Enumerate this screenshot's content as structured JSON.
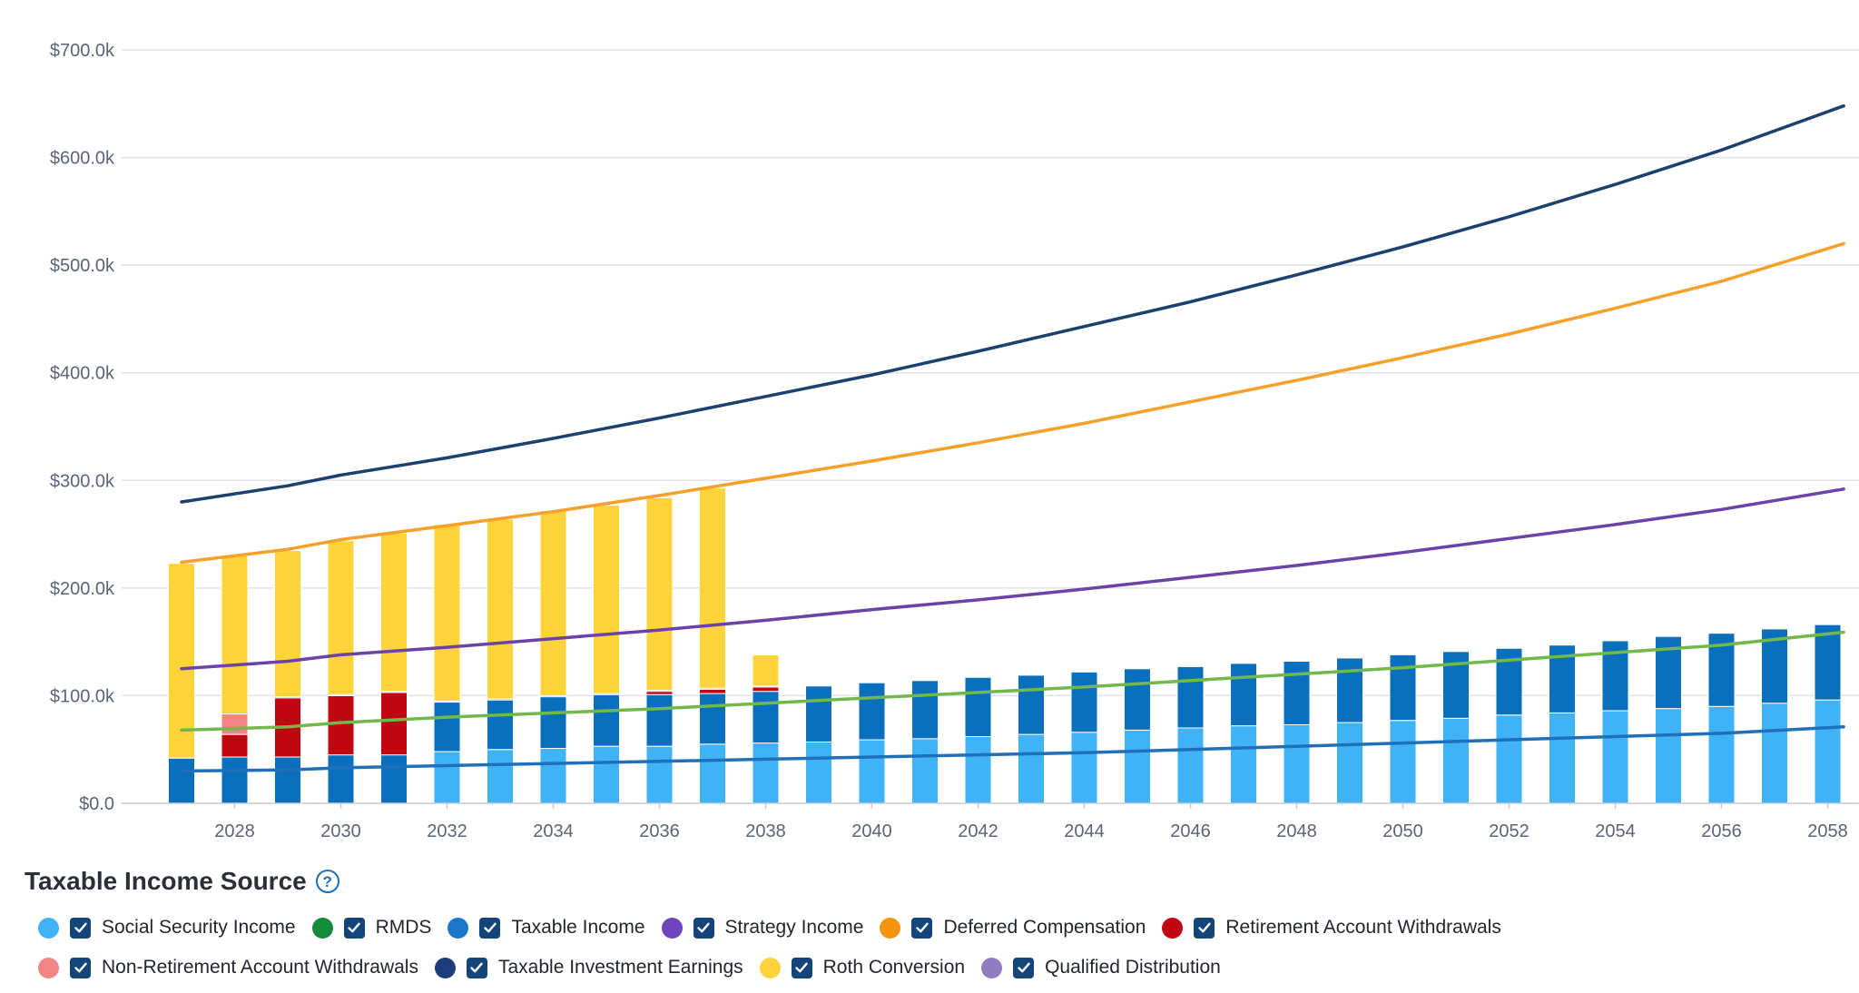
{
  "legend": {
    "title": "Taxable Income Source",
    "help_icon": "?",
    "items": [
      {
        "label": "Social Security Income",
        "color": "#3fb3f5"
      },
      {
        "label": "RMDS",
        "color": "#168a3c"
      },
      {
        "label": "Taxable Income",
        "color": "#1a77c9"
      },
      {
        "label": "Strategy Income",
        "color": "#6e45bd"
      },
      {
        "label": "Deferred Compensation",
        "color": "#f5950f"
      },
      {
        "label": "Retirement Account Withdrawals",
        "color": "#c00610"
      },
      {
        "label": "Non-Retirement Account Withdrawals",
        "color": "#f08586"
      },
      {
        "label": "Taxable Investment Earnings",
        "color": "#1c3c7b"
      },
      {
        "label": "Roth Conversion",
        "color": "#fed43a"
      },
      {
        "label": "Qualified Distribution",
        "color": "#8f7dbf"
      }
    ]
  },
  "chart_data": {
    "type": "bar",
    "stacked": true,
    "ylim": [
      0,
      700000
    ],
    "y_ticks": [
      0,
      100000,
      200000,
      300000,
      400000,
      500000,
      600000,
      700000
    ],
    "y_tick_labels": [
      "$0.0",
      "$100.0k",
      "$200.0k",
      "$300.0k",
      "$400.0k",
      "$500.0k",
      "$600.0k",
      "$700.0k"
    ],
    "x_tick_labels": [
      "2028",
      "2030",
      "2032",
      "2034",
      "2036",
      "2038",
      "2040",
      "2042",
      "2044",
      "2046",
      "2048",
      "2050",
      "2052",
      "2054",
      "2056",
      "2058"
    ],
    "categories": [
      2027,
      2028,
      2029,
      2030,
      2031,
      2032,
      2033,
      2034,
      2035,
      2036,
      2037,
      2038,
      2039,
      2040,
      2041,
      2042,
      2043,
      2044,
      2045,
      2046,
      2047,
      2048,
      2049,
      2050,
      2051,
      2052,
      2053,
      2054,
      2055,
      2056,
      2057,
      2058
    ],
    "grid": true,
    "legend_position": "bottom",
    "series": [
      {
        "name": "Social Security Income",
        "color": "#3fb3f5",
        "values": [
          0,
          0,
          0,
          0,
          0,
          48000,
          50000,
          51000,
          53000,
          53000,
          55000,
          56000,
          57000,
          59000,
          60000,
          62000,
          64000,
          66000,
          68000,
          70000,
          72000,
          73000,
          75000,
          77000,
          79000,
          82000,
          84000,
          86000,
          88000,
          90000,
          93000,
          96000
        ]
      },
      {
        "name": "Taxable Income",
        "color": "#0a6fbd",
        "values": [
          42000,
          43000,
          43000,
          45000,
          45000,
          46000,
          46000,
          48000,
          48000,
          48000,
          47000,
          48000,
          52000,
          53000,
          54000,
          55000,
          55000,
          56000,
          57000,
          57000,
          58000,
          59000,
          60000,
          61000,
          62000,
          62000,
          63000,
          65000,
          67000,
          68000,
          69000,
          70000
        ]
      },
      {
        "name": "Retirement Account Withdrawals",
        "color": "#c00610",
        "values": [
          0,
          21000,
          55000,
          55000,
          58000,
          0,
          0,
          0,
          0,
          3000,
          4000,
          4000,
          0,
          0,
          0,
          0,
          0,
          0,
          0,
          0,
          0,
          0,
          0,
          0,
          0,
          0,
          0,
          0,
          0,
          0,
          0,
          0
        ]
      },
      {
        "name": "Non-Retirement Account Withdrawals",
        "color": "#f08586",
        "values": [
          0,
          19000,
          0,
          0,
          0,
          0,
          0,
          0,
          0,
          0,
          0,
          0,
          0,
          0,
          0,
          0,
          0,
          0,
          0,
          0,
          0,
          0,
          0,
          0,
          0,
          0,
          0,
          0,
          0,
          0,
          0,
          0
        ]
      },
      {
        "name": "Taxable Investment Earnings",
        "color": "#1c3c7b",
        "values": [
          0,
          0,
          1000,
          1000,
          1000,
          1000,
          1000,
          1000,
          1000,
          1000,
          1000,
          1000,
          0,
          0,
          0,
          0,
          0,
          0,
          0,
          0,
          0,
          0,
          0,
          0,
          0,
          0,
          0,
          0,
          0,
          0,
          0,
          0
        ]
      },
      {
        "name": "Roth Conversion",
        "color": "#fed43a",
        "values": [
          181000,
          147000,
          136000,
          143000,
          147000,
          164000,
          167000,
          172000,
          175000,
          179000,
          186000,
          29000,
          0,
          0,
          0,
          0,
          0,
          0,
          0,
          0,
          0,
          0,
          0,
          0,
          0,
          0,
          0,
          0,
          0,
          0,
          0,
          0
        ]
      }
    ],
    "lines": [
      {
        "color": "#1c416f",
        "x": [
          2027,
          2029,
          2030,
          2032,
          2034,
          2036,
          2038,
          2040,
          2042,
          2044,
          2046,
          2048,
          2050,
          2052,
          2054,
          2056,
          2058.3
        ],
        "y": [
          280000,
          295000,
          305000,
          321000,
          339000,
          358000,
          378000,
          398000,
          420000,
          443000,
          466000,
          491000,
          517000,
          545000,
          575000,
          607000,
          648000
        ]
      },
      {
        "color": "#f5a02a",
        "x": [
          2027,
          2029,
          2030,
          2032,
          2034,
          2036,
          2038,
          2040,
          2042,
          2044,
          2046,
          2048,
          2050,
          2052,
          2054,
          2056,
          2058.3
        ],
        "y": [
          224000,
          236000,
          245000,
          258000,
          271000,
          286000,
          302000,
          318000,
          335000,
          353000,
          373000,
          393000,
          414000,
          436000,
          460000,
          485000,
          520000
        ]
      },
      {
        "color": "#6a42a8",
        "x": [
          2027,
          2029,
          2030,
          2032,
          2034,
          2036,
          2038,
          2040,
          2042,
          2044,
          2046,
          2048,
          2050,
          2052,
          2054,
          2056,
          2058.3
        ],
        "y": [
          125000,
          132000,
          138000,
          145000,
          153000,
          161000,
          170000,
          180000,
          189000,
          199000,
          210000,
          221000,
          233000,
          246000,
          259000,
          273000,
          292000
        ]
      },
      {
        "color": "#72b84a",
        "x": [
          2027,
          2029,
          2030,
          2032,
          2034,
          2036,
          2038,
          2040,
          2042,
          2044,
          2046,
          2048,
          2050,
          2052,
          2054,
          2056,
          2058.3
        ],
        "y": [
          68000,
          71000,
          75000,
          80000,
          84000,
          88000,
          93000,
          98000,
          103000,
          108000,
          114000,
          120000,
          126000,
          133000,
          140000,
          147000,
          159000
        ]
      },
      {
        "color": "#1f6fba",
        "x": [
          2027,
          2029,
          2030,
          2032,
          2034,
          2036,
          2038,
          2040,
          2042,
          2044,
          2046,
          2048,
          2050,
          2052,
          2054,
          2056,
          2058.3
        ],
        "y": [
          30000,
          31000,
          33000,
          35000,
          37000,
          39000,
          41000,
          43000,
          45000,
          47000,
          50000,
          53000,
          56000,
          59000,
          62000,
          65000,
          71000
        ]
      }
    ]
  }
}
